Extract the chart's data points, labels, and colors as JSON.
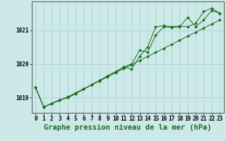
{
  "title": "Graphe pression niveau de la mer (hPa)",
  "x_ticks": [
    0,
    1,
    2,
    3,
    4,
    5,
    6,
    7,
    8,
    9,
    10,
    11,
    12,
    13,
    14,
    15,
    16,
    17,
    18,
    19,
    20,
    21,
    22,
    23
  ],
  "ylim": [
    1018.55,
    1021.85
  ],
  "yticks": [
    1019,
    1020,
    1021
  ],
  "background_color": "#cce8e8",
  "grid_color": "#aad0d0",
  "line_color": "#1a6e1a",
  "series": [
    [
      1019.3,
      1018.72,
      1018.82,
      1018.92,
      1019.02,
      1019.14,
      1019.26,
      1019.38,
      1019.5,
      1019.62,
      1019.74,
      1019.86,
      1019.98,
      1020.1,
      1020.22,
      1020.34,
      1020.46,
      1020.58,
      1020.7,
      1020.82,
      1020.94,
      1021.06,
      1021.18,
      1021.3
    ],
    [
      1019.3,
      1018.72,
      1018.83,
      1018.93,
      1019.0,
      1019.12,
      1019.25,
      1019.38,
      1019.51,
      1019.64,
      1019.77,
      1019.9,
      1020.0,
      1020.4,
      1020.35,
      1020.85,
      1021.1,
      1021.08,
      1021.1,
      1021.38,
      1021.1,
      1021.3,
      1021.58,
      1021.5
    ],
    [
      1019.3,
      1018.72,
      1018.83,
      1018.93,
      1019.0,
      1019.12,
      1019.25,
      1019.38,
      1019.51,
      1019.64,
      1019.77,
      1019.9,
      1019.85,
      1020.22,
      1020.5,
      1021.1,
      1021.13,
      1021.1,
      1021.12,
      1021.1,
      1021.2,
      1021.55,
      1021.65,
      1021.5
    ]
  ],
  "title_fontsize": 7.5,
  "tick_fontsize": 5.5,
  "marker": "D",
  "markersize": 2.0,
  "linewidth": 0.7
}
